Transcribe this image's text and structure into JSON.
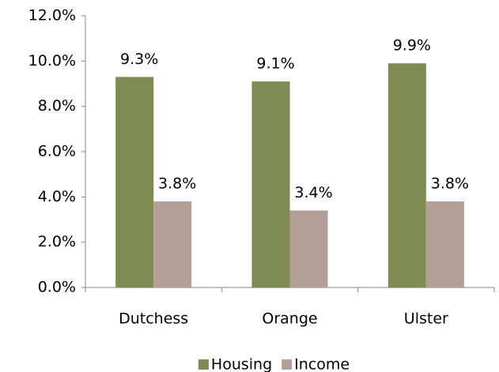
{
  "chart_data": {
    "type": "bar",
    "categories": [
      "Dutchess",
      "Orange",
      "Ulster"
    ],
    "series": [
      {
        "name": "Housing",
        "color": "#7f8b55",
        "values": [
          9.3,
          9.1,
          9.9
        ],
        "value_labels": [
          "9.3%",
          "9.1%",
          "9.9%"
        ]
      },
      {
        "name": "Income",
        "color": "#b39f95",
        "values": [
          3.8,
          3.4,
          3.8
        ],
        "value_labels": [
          "3.8%",
          "3.4%",
          "3.8%"
        ]
      }
    ],
    "ylim": [
      0,
      12
    ],
    "yticks": [
      {
        "value": 0,
        "label": "0.0%"
      },
      {
        "value": 2,
        "label": "2.0%"
      },
      {
        "value": 4,
        "label": "4.0%"
      },
      {
        "value": 6,
        "label": "6.0%"
      },
      {
        "value": 8,
        "label": "8.0%"
      },
      {
        "value": 10,
        "label": "10.0%"
      },
      {
        "value": 12,
        "label": "12.0%"
      }
    ],
    "grid": false,
    "legend": "bottom"
  }
}
